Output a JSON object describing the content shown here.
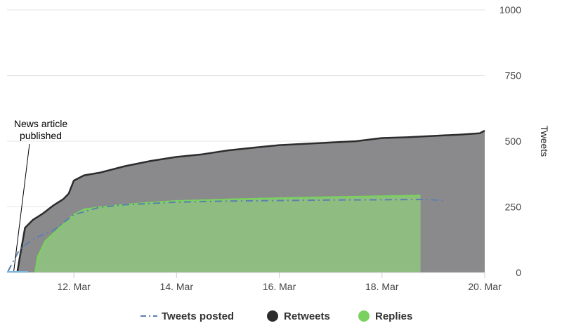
{
  "chart_data": {
    "type": "area",
    "x_ticks": [
      "12. Mar",
      "14. Mar",
      "16. Mar",
      "18. Mar",
      "20. Mar"
    ],
    "x_tick_values": [
      12,
      14,
      16,
      18,
      20
    ],
    "xlim": [
      10.7,
      20
    ],
    "y_ticks": [
      "0",
      "250",
      "500",
      "750",
      "1000"
    ],
    "y_tick_values": [
      0,
      250,
      500,
      750,
      1000
    ],
    "ylim": [
      0,
      1000
    ],
    "ylabel": "Tweets",
    "legend_position": "bottom-center",
    "grid": true,
    "annotation": {
      "lines": [
        "News article",
        "published"
      ],
      "x": 10.9,
      "y": 0
    },
    "series": [
      {
        "name": "Tweets posted",
        "style": "dashed-line",
        "color": "#5b7fb0",
        "x": [
          10.72,
          10.95,
          11.2,
          11.35,
          11.6,
          12,
          12.5,
          13,
          14,
          15,
          16,
          17,
          18,
          18.8,
          19.2
        ],
        "y": [
          5,
          90,
          125,
          140,
          160,
          220,
          248,
          258,
          268,
          272,
          274,
          276,
          277,
          278,
          275
        ]
      },
      {
        "name": "Retweets",
        "style": "area",
        "color": "#2c2c2c",
        "fill": "#8a8a8c",
        "x": [
          10.9,
          10.95,
          11.05,
          11.2,
          11.4,
          11.6,
          11.8,
          11.9,
          12,
          12.2,
          12.5,
          13,
          13.5,
          14,
          14.5,
          15,
          15.5,
          16,
          16.5,
          17,
          17.5,
          18,
          18.5,
          19,
          19.5,
          19.9,
          20
        ],
        "y": [
          0,
          60,
          170,
          200,
          225,
          255,
          280,
          300,
          350,
          370,
          380,
          405,
          425,
          440,
          450,
          465,
          475,
          485,
          490,
          495,
          500,
          512,
          515,
          520,
          525,
          530,
          540
        ]
      },
      {
        "name": "Replies",
        "style": "area",
        "color": "#7bd160",
        "fill": "#8fbc80",
        "x": [
          11.25,
          11.3,
          11.45,
          11.7,
          12,
          12.2,
          12.5,
          13,
          13.5,
          14,
          15,
          16,
          17,
          18,
          18.6,
          18.75
        ],
        "y": [
          0,
          60,
          120,
          165,
          220,
          240,
          248,
          258,
          266,
          272,
          278,
          283,
          287,
          290,
          292,
          293
        ]
      }
    ]
  },
  "colors": {
    "grid": "#e6e6e6",
    "axis_line": "#cccccc",
    "plot_bg": "#ffffff"
  }
}
